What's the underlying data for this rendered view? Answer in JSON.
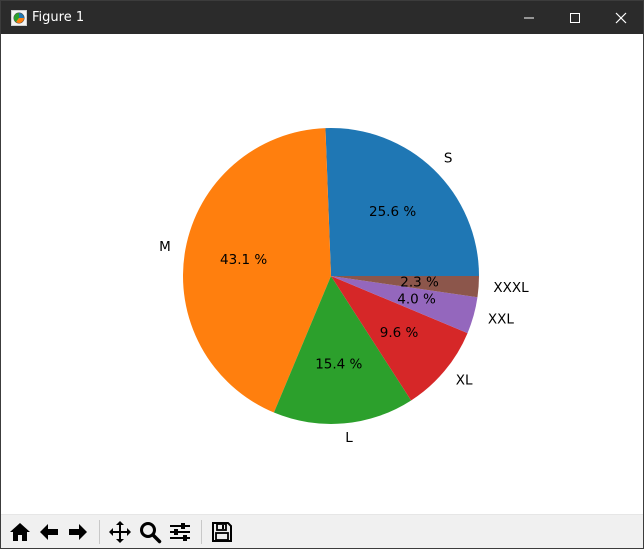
{
  "window": {
    "title": "Figure 1",
    "app_icon": "matplotlib-figure-icon",
    "controls": {
      "minimize_icon": "minimize-icon",
      "maximize_icon": "maximize-icon",
      "close_icon": "close-icon"
    },
    "titlebar_color": "#2b2b2b"
  },
  "toolbar": {
    "buttons": [
      {
        "icon": "home-icon"
      },
      {
        "icon": "back-arrow-icon"
      },
      {
        "icon": "forward-arrow-icon"
      },
      {
        "icon": "pan-icon"
      },
      {
        "icon": "zoom-icon"
      },
      {
        "icon": "configure-subplots-icon"
      },
      {
        "icon": "save-icon"
      }
    ]
  },
  "chart_data": {
    "type": "pie",
    "title": "",
    "start_angle": 0,
    "direction": "counterclockwise",
    "categories": [
      "S",
      "M",
      "L",
      "XL",
      "XXL",
      "XXXL"
    ],
    "values": [
      25.6,
      43.1,
      15.4,
      9.6,
      4.0,
      2.3
    ],
    "labels": [
      "25.6 %",
      "43.1 %",
      "15.4 %",
      "9.6 %",
      "4.0 %",
      "2.3 %"
    ],
    "colors": [
      "#1f77b4",
      "#ff7f0e",
      "#2ca02c",
      "#d62728",
      "#9467bd",
      "#8c564b"
    ]
  }
}
